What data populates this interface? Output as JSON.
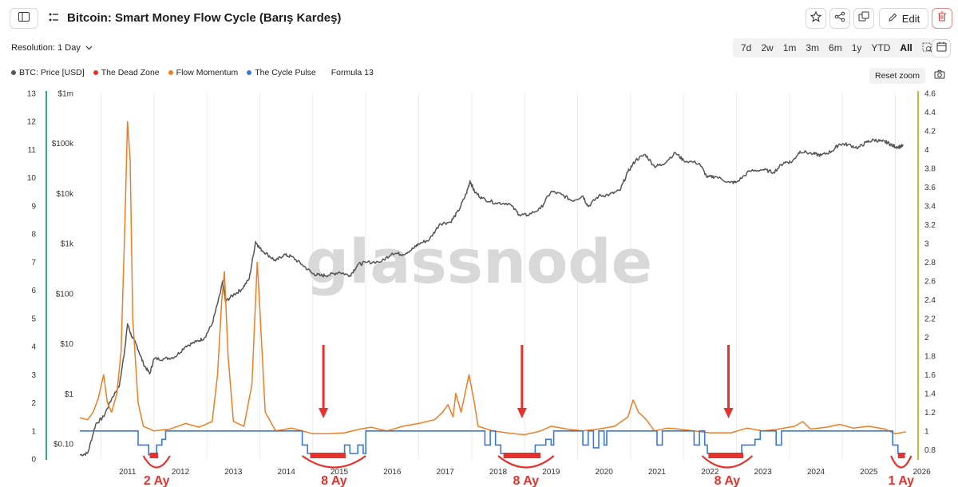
{
  "header": {
    "title": "Bitcoin: Smart Money Flow Cycle (Barış Kardeş)",
    "edit_label": "Edit"
  },
  "toolbar": {
    "resolution_label": "Resolution: 1 Day",
    "ranges": [
      "7d",
      "2w",
      "1m",
      "3m",
      "6m",
      "1y",
      "YTD",
      "All"
    ],
    "active_range": "All",
    "reset_zoom_label": "Reset zoom"
  },
  "legend": [
    {
      "label": "BTC: Price [USD]",
      "color": "#555555"
    },
    {
      "label": "The Dead Zone",
      "color": "#e5322d"
    },
    {
      "label": "Flow Momentum",
      "color": "#f07d24"
    },
    {
      "label": "The Cycle Pulse",
      "color": "#3a78d8"
    },
    {
      "label": "Formula 13",
      "color": ""
    }
  ],
  "watermark": "glassnode",
  "colors": {
    "price": "#555555",
    "dead_zone": "#e5322d",
    "momentum": "#f07d24",
    "pulse": "#3a78d8",
    "left_axis_line": "#37a89b",
    "right_axis_line": "#b8c23a"
  },
  "chart_data": {
    "type": "line",
    "x_ticks": [
      "2011",
      "2012",
      "2013",
      "2014",
      "2015",
      "2016",
      "2017",
      "2018",
      "2019",
      "2020",
      "2021",
      "2022",
      "2023",
      "2024",
      "2025",
      "2026"
    ],
    "x_range": [
      2010.6,
      2026.4
    ],
    "y_left_ticks": [
      "0",
      "1",
      "2",
      "3",
      "4",
      "5",
      "6",
      "7",
      "8",
      "9",
      "10",
      "11",
      "12",
      "13"
    ],
    "y_left_range": [
      0,
      13
    ],
    "y_price_ticks": [
      "$0.10",
      "$1",
      "$10",
      "$100",
      "$1k",
      "$10k",
      "$100k",
      "$1m"
    ],
    "y_price_range": [
      0.1,
      1000000
    ],
    "y_price_scale": "log",
    "y_right_ticks": [
      "0.8",
      "1",
      "1.2",
      "1.4",
      "1.6",
      "1.8",
      "2",
      "2.2",
      "2.4",
      "2.6",
      "2.8",
      "3",
      "3.2",
      "3.4",
      "3.6",
      "3.8",
      "4",
      "4.2",
      "4.4",
      "4.6"
    ],
    "y_right_range": [
      0.7,
      4.6
    ],
    "grid": "vertical",
    "series": [
      {
        "name": "BTC: Price [USD]",
        "axis": "price",
        "points": [
          [
            2010.6,
            0.06
          ],
          [
            2010.75,
            0.065
          ],
          [
            2010.9,
            0.25
          ],
          [
            2011.05,
            0.35
          ],
          [
            2011.2,
            0.8
          ],
          [
            2011.35,
            1.5
          ],
          [
            2011.45,
            8
          ],
          [
            2011.5,
            25
          ],
          [
            2011.58,
            14
          ],
          [
            2011.68,
            9
          ],
          [
            2011.8,
            4
          ],
          [
            2011.92,
            2.5
          ],
          [
            2012.0,
            5
          ],
          [
            2012.2,
            5
          ],
          [
            2012.4,
            5.5
          ],
          [
            2012.6,
            9
          ],
          [
            2012.8,
            11
          ],
          [
            2012.95,
            13
          ],
          [
            2013.1,
            25
          ],
          [
            2013.25,
            100
          ],
          [
            2013.3,
            180
          ],
          [
            2013.35,
            70
          ],
          [
            2013.5,
            95
          ],
          [
            2013.65,
            120
          ],
          [
            2013.8,
            200
          ],
          [
            2013.92,
            1100
          ],
          [
            2014.0,
            800
          ],
          [
            2014.15,
            600
          ],
          [
            2014.3,
            450
          ],
          [
            2014.45,
            600
          ],
          [
            2014.6,
            550
          ],
          [
            2014.8,
            380
          ],
          [
            2015.0,
            250
          ],
          [
            2015.15,
            230
          ],
          [
            2015.3,
            235
          ],
          [
            2015.5,
            270
          ],
          [
            2015.7,
            230
          ],
          [
            2015.85,
            380
          ],
          [
            2016.0,
            420
          ],
          [
            2016.3,
            440
          ],
          [
            2016.5,
            650
          ],
          [
            2016.7,
            610
          ],
          [
            2016.9,
            800
          ],
          [
            2017.0,
            990
          ],
          [
            2017.2,
            1200
          ],
          [
            2017.4,
            2500
          ],
          [
            2017.6,
            2700
          ],
          [
            2017.75,
            4500
          ],
          [
            2017.9,
            10000
          ],
          [
            2017.97,
            18000
          ],
          [
            2018.05,
            11000
          ],
          [
            2018.2,
            8000
          ],
          [
            2018.45,
            6500
          ],
          [
            2018.7,
            6400
          ],
          [
            2018.9,
            3800
          ],
          [
            2019.05,
            3700
          ],
          [
            2019.3,
            5000
          ],
          [
            2019.5,
            11000
          ],
          [
            2019.7,
            9500
          ],
          [
            2019.9,
            7200
          ],
          [
            2020.1,
            9000
          ],
          [
            2020.2,
            5500
          ],
          [
            2020.4,
            9000
          ],
          [
            2020.6,
            9500
          ],
          [
            2020.8,
            11500
          ],
          [
            2020.95,
            27000
          ],
          [
            2021.1,
            47000
          ],
          [
            2021.28,
            60000
          ],
          [
            2021.45,
            35000
          ],
          [
            2021.6,
            38000
          ],
          [
            2021.85,
            65000
          ],
          [
            2022.0,
            46000
          ],
          [
            2022.3,
            40000
          ],
          [
            2022.45,
            21000
          ],
          [
            2022.6,
            22000
          ],
          [
            2022.88,
            16500
          ],
          [
            2023.0,
            16800
          ],
          [
            2023.25,
            28000
          ],
          [
            2023.5,
            30000
          ],
          [
            2023.7,
            26500
          ],
          [
            2023.9,
            42000
          ],
          [
            2024.05,
            43000
          ],
          [
            2024.2,
            70000
          ],
          [
            2024.45,
            62000
          ],
          [
            2024.6,
            58000
          ],
          [
            2024.8,
            70000
          ],
          [
            2024.95,
            98000
          ],
          [
            2025.1,
            95000
          ],
          [
            2025.3,
            82000
          ],
          [
            2025.45,
            105000
          ],
          [
            2025.6,
            118000
          ],
          [
            2025.75,
            110000
          ],
          [
            2025.85,
            105000
          ],
          [
            2025.95,
            90000
          ],
          [
            2026.05,
            85000
          ],
          [
            2026.15,
            90000
          ]
        ]
      },
      {
        "name": "Flow Momentum",
        "axis": "right",
        "points": [
          [
            2010.6,
            1.14
          ],
          [
            2010.75,
            1.12
          ],
          [
            2010.85,
            1.2
          ],
          [
            2010.95,
            1.35
          ],
          [
            2011.05,
            1.6
          ],
          [
            2011.12,
            1.3
          ],
          [
            2011.2,
            1.2
          ],
          [
            2011.3,
            1.4
          ],
          [
            2011.38,
            1.85
          ],
          [
            2011.45,
            3.2
          ],
          [
            2011.5,
            4.3
          ],
          [
            2011.55,
            3.9
          ],
          [
            2011.6,
            2.2
          ],
          [
            2011.7,
            1.3
          ],
          [
            2011.8,
            1.05
          ],
          [
            2012.0,
            1.0
          ],
          [
            2012.3,
            1.02
          ],
          [
            2012.6,
            1.08
          ],
          [
            2012.85,
            1.04
          ],
          [
            2013.1,
            1.1
          ],
          [
            2013.2,
            1.6
          ],
          [
            2013.28,
            2.4
          ],
          [
            2013.33,
            2.7
          ],
          [
            2013.4,
            1.8
          ],
          [
            2013.5,
            1.1
          ],
          [
            2013.7,
            1.05
          ],
          [
            2013.85,
            1.5
          ],
          [
            2013.95,
            2.8
          ],
          [
            2014.0,
            2.3
          ],
          [
            2014.1,
            1.2
          ],
          [
            2014.3,
            1.0
          ],
          [
            2014.6,
            1.03
          ],
          [
            2015.0,
            0.97
          ],
          [
            2015.3,
            0.97
          ],
          [
            2015.6,
            0.98
          ],
          [
            2015.9,
            1.02
          ],
          [
            2016.1,
            1.04
          ],
          [
            2016.4,
            1.0
          ],
          [
            2016.7,
            1.05
          ],
          [
            2017.0,
            1.08
          ],
          [
            2017.3,
            1.12
          ],
          [
            2017.45,
            1.2
          ],
          [
            2017.55,
            1.28
          ],
          [
            2017.65,
            1.15
          ],
          [
            2017.7,
            1.4
          ],
          [
            2017.8,
            1.2
          ],
          [
            2017.95,
            1.6
          ],
          [
            2018.05,
            1.3
          ],
          [
            2018.12,
            1.05
          ],
          [
            2018.4,
            1.0
          ],
          [
            2018.8,
            0.97
          ],
          [
            2019.0,
            0.96
          ],
          [
            2019.3,
            1.0
          ],
          [
            2019.5,
            1.05
          ],
          [
            2019.8,
            1.02
          ],
          [
            2020.1,
            1.0
          ],
          [
            2020.4,
            1.02
          ],
          [
            2020.7,
            1.05
          ],
          [
            2020.95,
            1.15
          ],
          [
            2021.05,
            1.33
          ],
          [
            2021.15,
            1.2
          ],
          [
            2021.3,
            1.12
          ],
          [
            2021.45,
            1.0
          ],
          [
            2021.7,
            1.03
          ],
          [
            2021.9,
            1.02
          ],
          [
            2022.2,
            1.0
          ],
          [
            2022.5,
            0.98
          ],
          [
            2022.9,
            0.98
          ],
          [
            2023.2,
            1.03
          ],
          [
            2023.5,
            1.0
          ],
          [
            2023.8,
            1.02
          ],
          [
            2024.1,
            1.05
          ],
          [
            2024.25,
            1.1
          ],
          [
            2024.4,
            1.02
          ],
          [
            2024.7,
            1.04
          ],
          [
            2024.95,
            1.07
          ],
          [
            2025.2,
            1.03
          ],
          [
            2025.5,
            1.05
          ],
          [
            2025.8,
            1.02
          ],
          [
            2026.0,
            0.97
          ],
          [
            2026.2,
            0.99
          ]
        ]
      },
      {
        "name": "The Cycle Pulse",
        "axis": "left",
        "points": [
          [
            2010.6,
            1
          ],
          [
            2011.7,
            1
          ],
          [
            2011.7,
            0.5
          ],
          [
            2011.9,
            0.5
          ],
          [
            2011.9,
            0.15
          ],
          [
            2012.05,
            0.15
          ],
          [
            2012.05,
            0.5
          ],
          [
            2012.15,
            0.5
          ],
          [
            2012.15,
            0.7
          ],
          [
            2012.22,
            0.7
          ],
          [
            2012.22,
            1
          ],
          [
            2014.8,
            1
          ],
          [
            2014.8,
            0.5
          ],
          [
            2014.9,
            0.5
          ],
          [
            2014.9,
            0.2
          ],
          [
            2015.6,
            0.2
          ],
          [
            2015.6,
            0.5
          ],
          [
            2015.7,
            0.5
          ],
          [
            2015.7,
            0.2
          ],
          [
            2015.85,
            0.2
          ],
          [
            2015.85,
            0.5
          ],
          [
            2015.95,
            0.5
          ],
          [
            2015.95,
            0.2
          ],
          [
            2016.0,
            0.2
          ],
          [
            2016.0,
            1
          ],
          [
            2018.25,
            1
          ],
          [
            2018.25,
            0.5
          ],
          [
            2018.35,
            0.5
          ],
          [
            2018.35,
            1
          ],
          [
            2018.45,
            1
          ],
          [
            2018.45,
            0.5
          ],
          [
            2018.55,
            0.5
          ],
          [
            2018.55,
            0.2
          ],
          [
            2019.2,
            0.2
          ],
          [
            2019.2,
            0.5
          ],
          [
            2019.4,
            0.5
          ],
          [
            2019.4,
            0.7
          ],
          [
            2019.5,
            0.7
          ],
          [
            2019.5,
            0.5
          ],
          [
            2019.55,
            0.5
          ],
          [
            2019.55,
            1
          ],
          [
            2020.1,
            1
          ],
          [
            2020.1,
            0.5
          ],
          [
            2020.2,
            0.5
          ],
          [
            2020.2,
            1
          ],
          [
            2020.3,
            1
          ],
          [
            2020.3,
            0.4
          ],
          [
            2020.4,
            0.4
          ],
          [
            2020.4,
            1
          ],
          [
            2020.5,
            1
          ],
          [
            2020.5,
            0.5
          ],
          [
            2020.55,
            0.5
          ],
          [
            2020.55,
            1
          ],
          [
            2021.5,
            1
          ],
          [
            2021.5,
            0.5
          ],
          [
            2021.6,
            0.5
          ],
          [
            2021.6,
            1
          ],
          [
            2022.2,
            1
          ],
          [
            2022.2,
            0.5
          ],
          [
            2022.3,
            0.5
          ],
          [
            2022.3,
            1
          ],
          [
            2022.4,
            1
          ],
          [
            2022.4,
            0.5
          ],
          [
            2022.45,
            0.5
          ],
          [
            2022.45,
            0.2
          ],
          [
            2023.1,
            0.2
          ],
          [
            2023.1,
            0.5
          ],
          [
            2023.35,
            0.5
          ],
          [
            2023.35,
            0.7
          ],
          [
            2023.45,
            0.7
          ],
          [
            2023.45,
            1
          ],
          [
            2023.75,
            1
          ],
          [
            2023.75,
            0.5
          ],
          [
            2023.85,
            0.5
          ],
          [
            2023.85,
            1
          ],
          [
            2025.95,
            1
          ],
          [
            2025.95,
            0.5
          ],
          [
            2026.05,
            0.5
          ],
          [
            2026.05,
            0.2
          ],
          [
            2026.2,
            0.2
          ]
        ]
      },
      {
        "name": "The Dead Zone",
        "axis": "left",
        "bars": [
          [
            2011.92,
            2012.08
          ],
          [
            2014.95,
            2015.62
          ],
          [
            2018.6,
            2019.3
          ],
          [
            2022.47,
            2023.13
          ],
          [
            2026.05,
            2026.18
          ]
        ]
      }
    ],
    "annotations": {
      "arrows_x": [
        2015.2,
        2018.95,
        2022.85
      ],
      "arcs": [
        {
          "x_start": 2011.8,
          "x_end": 2012.3,
          "label": "2 Ay"
        },
        {
          "x_start": 2014.8,
          "x_end": 2016.0,
          "label": "8 Ay"
        },
        {
          "x_start": 2018.5,
          "x_end": 2019.55,
          "label": "8 Ay"
        },
        {
          "x_start": 2022.35,
          "x_end": 2023.3,
          "label": "8 Ay"
        },
        {
          "x_start": 2025.92,
          "x_end": 2026.3,
          "label": "1 Ay"
        }
      ]
    }
  }
}
